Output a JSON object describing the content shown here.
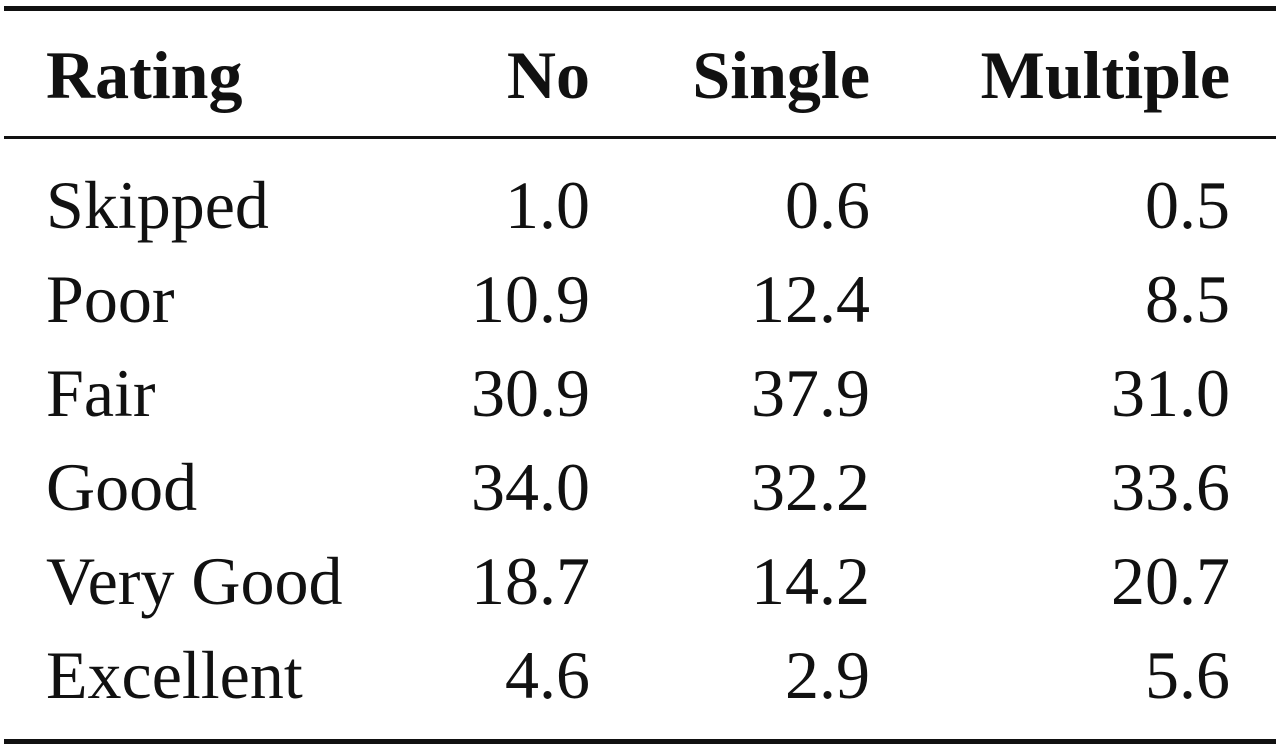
{
  "table": {
    "headers": [
      "Rating",
      "No",
      "Single",
      "Multiple"
    ],
    "rows": [
      [
        "Skipped",
        "1.0",
        "0.6",
        "0.5"
      ],
      [
        "Poor",
        "10.9",
        "12.4",
        "8.5"
      ],
      [
        "Fair",
        "30.9",
        "37.9",
        "31.0"
      ],
      [
        "Good",
        "34.0",
        "32.2",
        "33.6"
      ],
      [
        "Very Good",
        "18.7",
        "14.2",
        "20.7"
      ],
      [
        "Excellent",
        "4.6",
        "2.9",
        "5.6"
      ]
    ]
  }
}
